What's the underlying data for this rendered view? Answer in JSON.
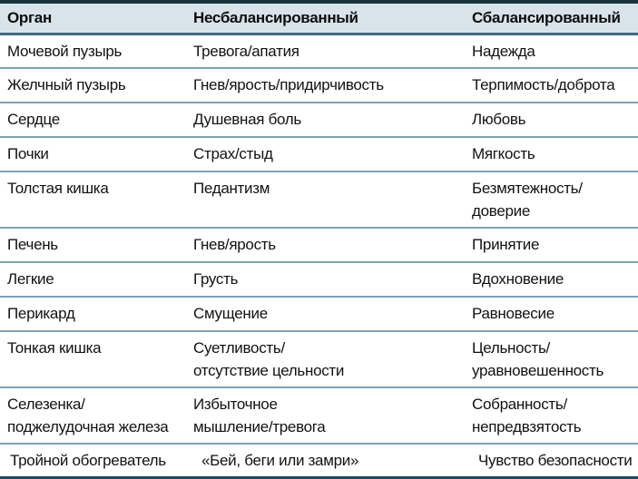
{
  "table": {
    "headers": [
      "Орган",
      "Несбалансированный",
      "Сбалансированный"
    ],
    "rows": [
      [
        "Мочевой пузырь",
        "Тревога/апатия",
        "Надежда"
      ],
      [
        "Желчный пузырь",
        "Гнев/ярость/придирчивость",
        "Терпимость/доброта"
      ],
      [
        "Сердце",
        "Душевная боль",
        "Любовь"
      ],
      [
        "Почки",
        "Страх/стыд",
        "Мягкость"
      ],
      [
        "Толстая кишка",
        "Педантизм",
        "Безмятежность/доверие"
      ],
      [
        "Печень",
        "Гнев/ярость",
        "Принятие"
      ],
      [
        "Легкие",
        "Грусть",
        "Вдохновение"
      ],
      [
        "Перикард",
        "Смущение",
        "Равновесие"
      ],
      [
        "Тонкая кишка",
        "Суетливость/\nотсутствие цельности",
        "Цельность/\nуравновешенность"
      ],
      [
        "Селезенка/\nподжелудочная железа",
        "Избыточное\nмышление/тревога",
        "Собранность/\nнепредвзятость"
      ],
      [
        "Тройной обогреватель",
        "«Бей, беги или замри»",
        "Чувство безопасности"
      ]
    ]
  },
  "colors": {
    "header_background": "#d9e4ea",
    "top_rule": "#16323d",
    "header_rule": "#3c6e87",
    "row_rule": "#7ca3b8",
    "bottom_rule": "#1d4a5e",
    "text": "#121212"
  }
}
